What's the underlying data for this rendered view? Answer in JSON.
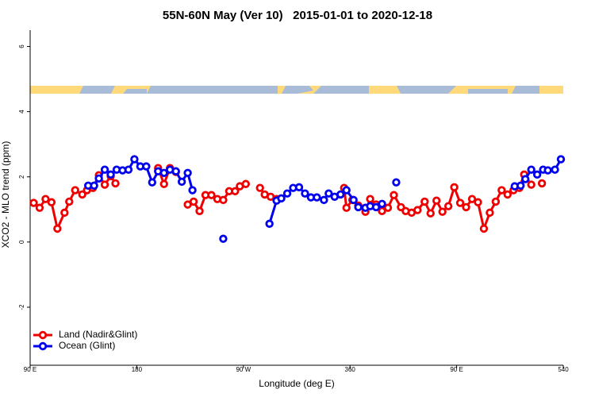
{
  "chart_data": {
    "type": "line",
    "title": "55N-60N May (Ver 10)   2015-01-01 to 2020-12-18",
    "x_label": "Longitude (deg E)",
    "y_label": "XCO2 - MLO trend (ppm)",
    "xlim": [
      90,
      540
    ],
    "xticks": [
      {
        "value": 90,
        "label": "90 E"
      },
      180,
      {
        "value": 270,
        "label": "90 W"
      },
      360,
      {
        "value": 450,
        "label": "90 E"
      },
      540
    ],
    "ylim": [
      -3.78,
      6.5
    ],
    "yticks": [
      6,
      4,
      2,
      0,
      -2
    ],
    "legend": "bottom-left",
    "series": [
      {
        "name": "Land (Nadir&Glint)",
        "color": "#ee0000",
        "x": [
          93,
          98,
          103,
          108,
          113,
          119,
          123,
          128,
          134,
          138,
          143,
          148,
          153,
          158,
          162,
          null,
          198,
          203,
          208,
          213,
          null,
          223,
          228,
          233,
          238,
          243,
          248,
          253,
          258,
          263,
          267,
          272,
          null,
          284,
          288,
          293,
          298,
          null,
          355,
          357,
          362,
          367,
          373,
          377,
          382,
          387,
          392,
          397,
          403,
          407,
          412,
          417,
          423,
          428,
          433,
          438,
          443,
          448,
          453,
          458,
          463,
          468,
          473,
          478,
          483,
          488,
          493,
          498,
          503,
          507,
          513,
          null,
          522
        ],
        "values": [
          1.2,
          1.05,
          1.32,
          1.22,
          0.41,
          0.9,
          1.24,
          1.59,
          1.46,
          1.59,
          1.66,
          2.05,
          1.76,
          2.02,
          1.8,
          null,
          2.27,
          1.78,
          2.27,
          2.15,
          null,
          1.15,
          1.24,
          0.95,
          1.44,
          1.44,
          1.32,
          1.29,
          1.56,
          1.56,
          1.71,
          1.78,
          null,
          1.66,
          1.46,
          1.39,
          1.32,
          null,
          1.66,
          1.05,
          1.29,
          1.12,
          0.93,
          1.32,
          1.15,
          0.95,
          1.05,
          1.44,
          1.07,
          0.95,
          0.9,
          0.98,
          1.24,
          0.88,
          1.27,
          0.93,
          1.1,
          1.68,
          1.2,
          1.07,
          1.32,
          1.22,
          0.41,
          0.9,
          1.24,
          1.59,
          1.46,
          1.59,
          1.66,
          2.07,
          1.76,
          null,
          1.8
        ]
      },
      {
        "name": "Ocean (Glint)",
        "color": "#0000ee",
        "x": [
          139,
          144,
          148,
          153,
          158,
          163,
          168,
          173,
          178,
          183,
          188,
          193,
          198,
          203,
          208,
          213,
          218,
          223,
          227,
          null,
          253,
          null,
          292,
          298,
          302,
          307,
          312,
          317,
          322,
          327,
          332,
          338,
          342,
          347,
          352,
          357,
          363,
          367,
          373,
          377,
          382,
          387,
          null,
          399,
          null,
          499,
          504,
          508,
          513,
          518,
          523,
          527,
          533,
          538
        ],
        "values": [
          1.73,
          1.73,
          1.95,
          2.22,
          2.07,
          2.22,
          2.2,
          2.22,
          2.54,
          2.32,
          2.32,
          1.83,
          2.17,
          2.12,
          2.22,
          2.17,
          1.85,
          2.12,
          1.59,
          null,
          0.1,
          null,
          0.56,
          1.27,
          1.34,
          1.49,
          1.66,
          1.68,
          1.49,
          1.37,
          1.37,
          1.29,
          1.49,
          1.39,
          1.46,
          1.59,
          1.29,
          1.07,
          1.05,
          1.1,
          1.07,
          1.17,
          null,
          1.83,
          null,
          1.71,
          1.73,
          1.93,
          2.22,
          2.07,
          2.22,
          2.2,
          2.22,
          2.54
        ]
      }
    ]
  }
}
